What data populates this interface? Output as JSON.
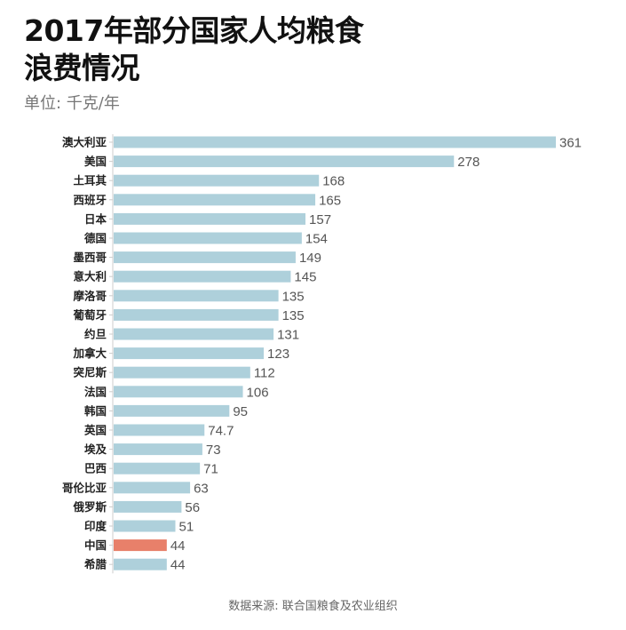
{
  "header": {
    "title_line1": "2017年部分国家人均粮食",
    "title_line2": "浪费情况",
    "unit": "单位: 千克/年"
  },
  "footer": {
    "source": "数据来源: 联合国粮食及农业组织"
  },
  "colors": {
    "bar": "#aed0db",
    "highlight": "#e8806a",
    "axis": "#cccccc"
  },
  "chart_data": {
    "type": "bar",
    "orientation": "horizontal",
    "title": "2017年部分国家人均粮食浪费情况",
    "subtitle": "单位: 千克/年",
    "xlabel": "",
    "ylabel": "",
    "xlim": [
      0,
      361
    ],
    "grid": false,
    "highlight": "中国",
    "categories": [
      "澳大利亚",
      "美国",
      "土耳其",
      "西班牙",
      "日本",
      "德国",
      "墨西哥",
      "意大利",
      "摩洛哥",
      "葡萄牙",
      "约旦",
      "加拿大",
      "突尼斯",
      "法国",
      "韩国",
      "英国",
      "埃及",
      "巴西",
      "哥伦比亚",
      "俄罗斯",
      "印度",
      "中国",
      "希腊"
    ],
    "values": [
      361,
      278,
      168,
      165,
      157,
      154,
      149,
      145,
      135,
      135,
      131,
      123,
      112,
      106,
      95,
      74.7,
      73,
      71,
      63,
      56,
      51,
      44,
      44
    ],
    "value_labels": [
      "361",
      "278",
      "168",
      "165",
      "157",
      "154",
      "149",
      "145",
      "135",
      "135",
      "131",
      "123",
      "112",
      "106",
      "95",
      "74.7",
      "73",
      "71",
      "63",
      "56",
      "51",
      "44",
      "44"
    ],
    "source": "数据来源: 联合国粮食及农业组织"
  }
}
